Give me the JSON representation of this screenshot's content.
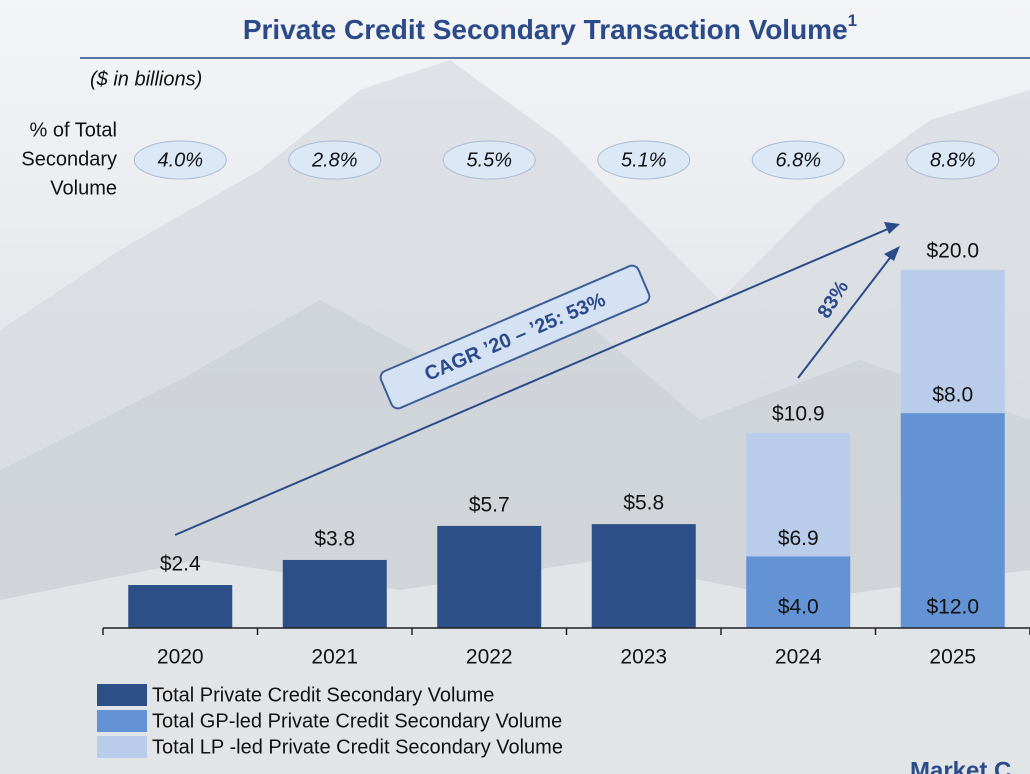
{
  "chart_data": {
    "type": "stacked_bar",
    "title": "Private Credit Secondary Transaction Volume",
    "title_footnote": "1",
    "subtitle": "($ in billions)",
    "categories": [
      "2020",
      "2021",
      "2022",
      "2023",
      "2024",
      "2025"
    ],
    "series": [
      {
        "name": "Total Private Credit Secondary Volume",
        "color": "#2b4f86",
        "values": [
          2.4,
          3.8,
          5.7,
          5.8,
          null,
          null
        ],
        "value_labels": [
          "$2.4",
          "$3.8",
          "$5.7",
          "$5.8",
          null,
          null
        ]
      },
      {
        "name": "Total GP-led Private Credit Secondary Volume",
        "color": "#6393d4",
        "values": [
          null,
          null,
          null,
          null,
          4.0,
          12.0
        ],
        "value_labels": [
          null,
          null,
          null,
          null,
          "$4.0",
          "$12.0"
        ]
      },
      {
        "name": "Total LP -led Private Credit Secondary Volume",
        "color": "#b9cdea",
        "values": [
          null,
          null,
          null,
          null,
          6.9,
          8.0
        ],
        "value_labels": [
          null,
          null,
          null,
          null,
          "$6.9",
          "$8.0"
        ]
      }
    ],
    "total_labels": [
      null,
      null,
      null,
      null,
      "$10.9",
      "$20.0"
    ],
    "pct_title_lines": [
      "% of Total",
      "Secondary",
      "Volume"
    ],
    "pct_labels": [
      "4.0%",
      "2.8%",
      "5.5%",
      "5.1%",
      "6.8%",
      "8.8%"
    ],
    "annotations": [
      "CAGR ’20 – ’25: 53%",
      "83%"
    ],
    "corner_text": "Market C",
    "ylim": [
      0,
      22
    ]
  }
}
